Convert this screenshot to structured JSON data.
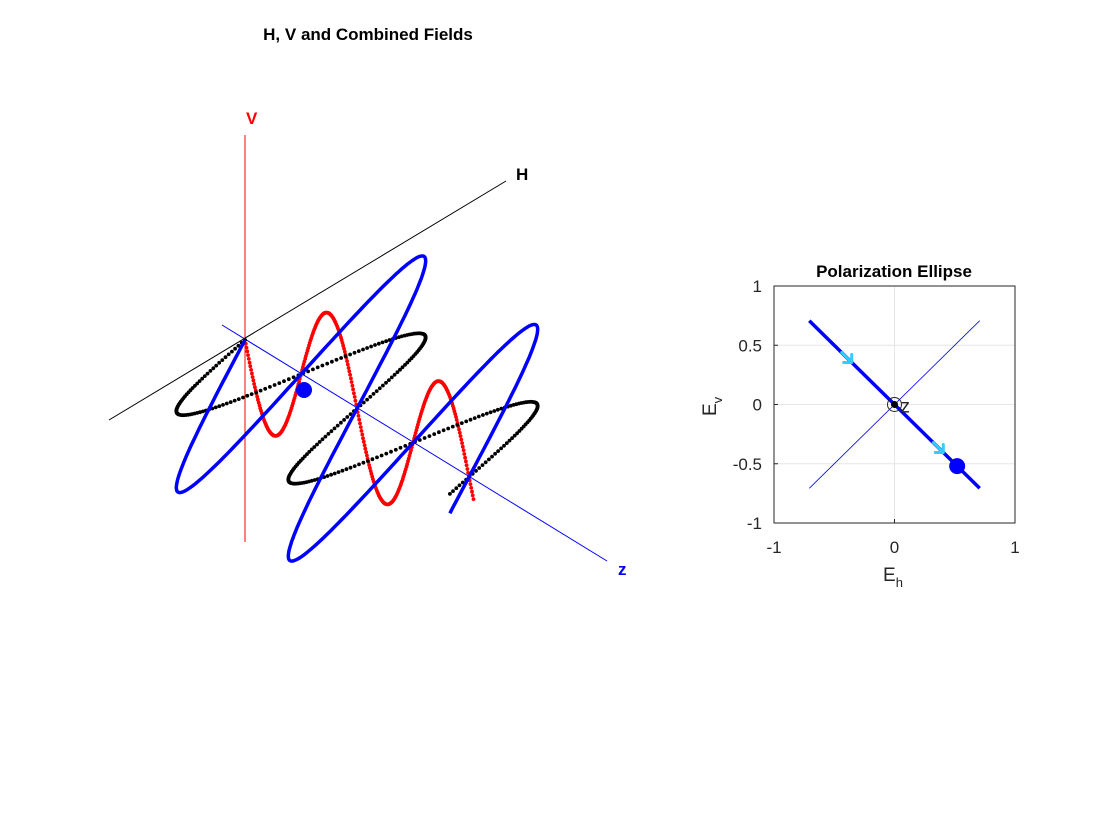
{
  "chart_data": [
    {
      "type": "line",
      "title": "H, V and Combined Fields",
      "axes": {
        "v_label": "V",
        "h_label": "H",
        "z_label": "z"
      },
      "colors": {
        "v": "#ff0000",
        "h": "#000000",
        "combined": "#0000ff"
      },
      "series": [],
      "grid": false
    },
    {
      "type": "line",
      "title": "Polarization Ellipse",
      "xlabel": "E",
      "xlabel_sub": "h",
      "ylabel": "E",
      "ylabel_sub": "v",
      "xlim": [
        -1,
        1
      ],
      "ylim": [
        -1,
        1
      ],
      "xticks": [
        "-1",
        "0",
        "1"
      ],
      "yticks": [
        "1",
        "0.5",
        "0",
        "-0.5",
        "-1"
      ],
      "grid": true,
      "center_label": "z",
      "series": [
        {
          "x": [
            -0.707,
            0.707
          ],
          "y": [
            0.707,
            -0.707
          ],
          "color": "#0000ff",
          "style": "thick"
        },
        {
          "x": [
            -0.707,
            0.707
          ],
          "y": [
            -0.707,
            0.707
          ],
          "color": "#0000ff",
          "style": "thin"
        }
      ],
      "current_point": {
        "x": 0.52,
        "y": -0.52,
        "color": "#0000ff"
      },
      "direction_arrows": [
        {
          "x": -0.38,
          "y": 0.38
        },
        {
          "x": 0.38,
          "y": -0.38
        }
      ],
      "arrow_color": "#33ccff"
    }
  ]
}
